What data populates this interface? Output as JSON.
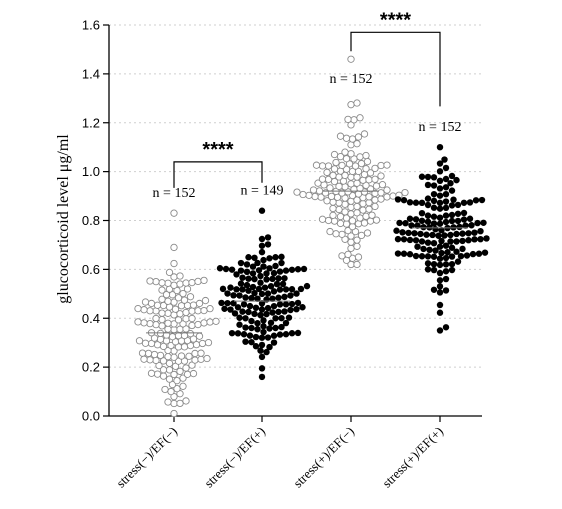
{
  "chart_data": {
    "type": "scatter",
    "subtype": "beeswarm",
    "ylabel": "glucocorticoid level μg/ml",
    "ylim": [
      0,
      1.6
    ],
    "yticks": [
      "0.0",
      "0.2",
      "0.4",
      "0.6",
      "0.8",
      "1.0",
      "1.2",
      "1.4",
      "1.6"
    ],
    "categories": [
      "stress(−)/EF(−)",
      "stress(−)/EF(+)",
      "stress(+)/EF(−)",
      "stress(+)/EF(+)"
    ],
    "grid": "horizontal dotted",
    "groups": [
      {
        "label": "stress(−)/EF(−)",
        "n_label": "n = 152",
        "n": 152,
        "marker": "open",
        "color": "#8a8a8a",
        "mean": 0.34,
        "min": 0.01,
        "max": 0.83
      },
      {
        "label": "stress(−)/EF(+)",
        "n_label": "n = 149",
        "n": 149,
        "marker": "filled",
        "color": "#000000",
        "mean": 0.47,
        "min": 0.16,
        "max": 0.84
      },
      {
        "label": "stress(+)/EF(−)",
        "n_label": "n = 152",
        "n": 152,
        "marker": "open",
        "color": "#8a8a8a",
        "mean": 0.92,
        "min": 0.62,
        "max": 1.46
      },
      {
        "label": "stress(+)/EF(+)",
        "n_label": "n = 152",
        "n": 152,
        "marker": "filled",
        "color": "#000000",
        "mean": 0.77,
        "min": 0.35,
        "max": 1.1
      }
    ],
    "significance": [
      {
        "between": [
          0,
          1
        ],
        "label": "****",
        "bracket_y": 1.04
      },
      {
        "between": [
          2,
          3
        ],
        "label": "****",
        "bracket_y": 1.57
      }
    ]
  }
}
